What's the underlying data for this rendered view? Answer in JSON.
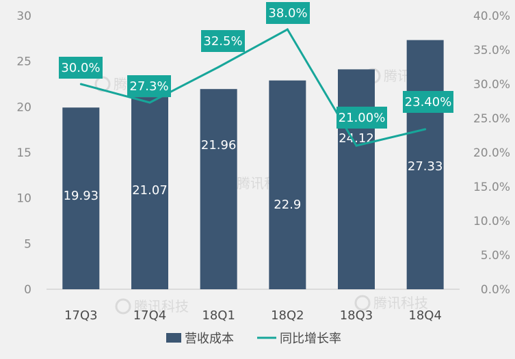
{
  "chart_data": {
    "type": "bar+line",
    "categories": [
      "17Q3",
      "17Q4",
      "18Q1",
      "18Q2",
      "18Q3",
      "18Q4"
    ],
    "series": [
      {
        "name": "营收成本",
        "type": "bar",
        "axis": "left",
        "values": [
          19.93,
          21.07,
          21.96,
          22.9,
          24.12,
          27.33
        ],
        "labels": [
          "19.93",
          "21.07",
          "21.96",
          "22.9",
          "24.12",
          "27.33"
        ]
      },
      {
        "name": "同比增长率",
        "type": "line",
        "axis": "right",
        "values": [
          30.0,
          27.3,
          32.5,
          38.0,
          21.0,
          23.4
        ],
        "labels": [
          "30.0%",
          "27.3%",
          "32.5%",
          "38.0%",
          "21.00%",
          "23.40%"
        ]
      }
    ],
    "y_left": {
      "lim": [
        0,
        30
      ],
      "ticks": [
        "0",
        "5",
        "10",
        "15",
        "20",
        "25",
        "30"
      ]
    },
    "y_right": {
      "lim": [
        0,
        40
      ],
      "ticks": [
        "0.0%",
        "5.0%",
        "10.0%",
        "15.0%",
        "20.0%",
        "25.0%",
        "30.0%",
        "35.0%",
        "40.0%"
      ]
    },
    "grid": false,
    "legend_position": "bottom",
    "colors": {
      "bar": "#3c5672",
      "line": "#17a69a",
      "label_box": "#17a69a",
      "axis_line": "#d4d4d4",
      "background": "#f1f1f1"
    },
    "watermark": "腾讯科技"
  }
}
